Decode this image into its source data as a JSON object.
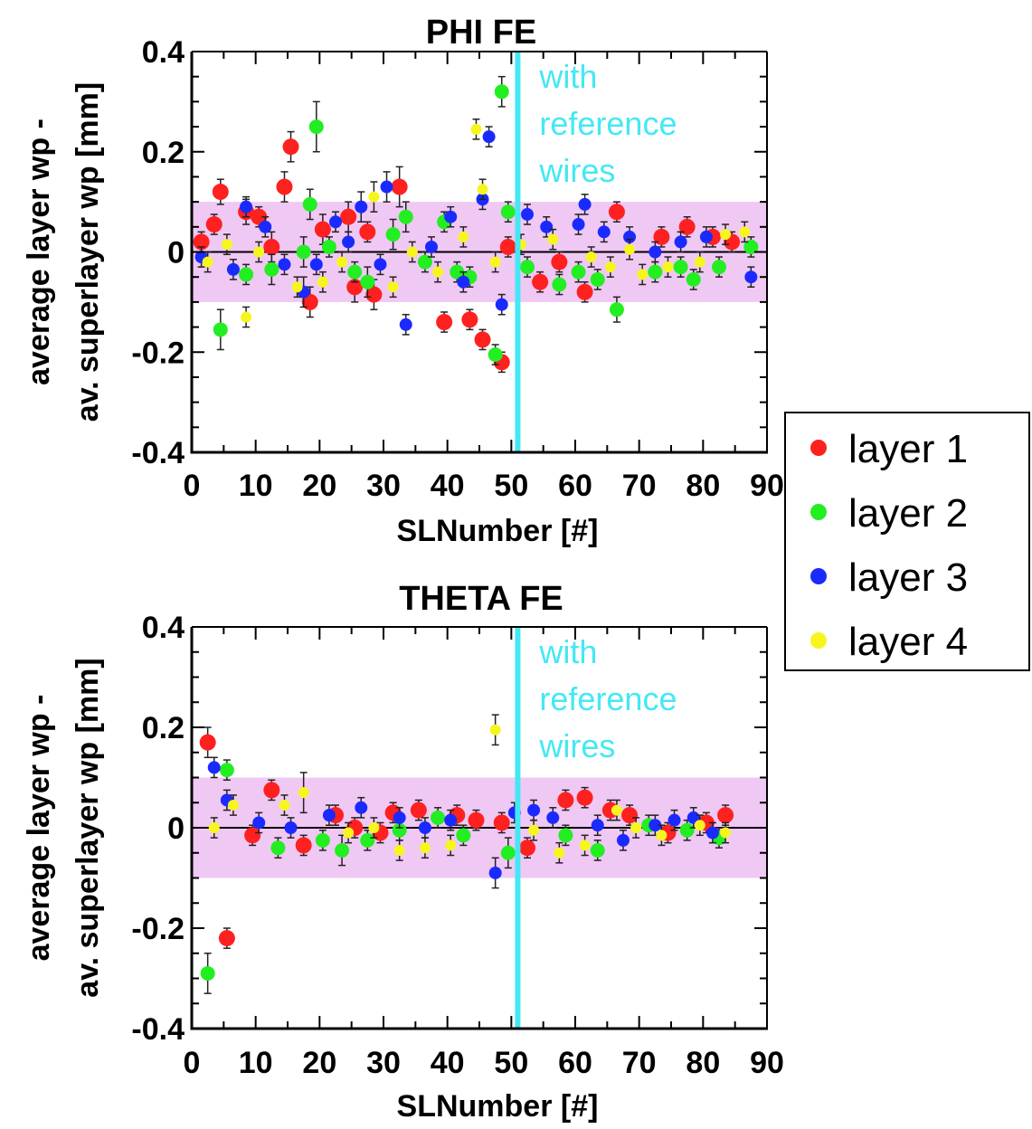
{
  "colors": {
    "band": "#f0c8f4",
    "reference_line": "#44e8f4",
    "axis": "#000000",
    "error_bar": "#222222"
  },
  "legend": {
    "placement": "right",
    "items": [
      {
        "label": "layer 1",
        "color": "#ff2020"
      },
      {
        "label": "layer 2",
        "color": "#22ee22"
      },
      {
        "label": "layer 3",
        "color": "#1a2aff"
      },
      {
        "label": "layer 4",
        "color": "#f6f61e"
      }
    ]
  },
  "chart_data": [
    {
      "type": "scatter",
      "title": "PHI FE",
      "xlabel": "SLNumber [#]",
      "ylabel_lines": [
        "average layer wp -",
        "av. superlayer wp [mm]"
      ],
      "xlim": [
        0,
        90
      ],
      "ylim": [
        -0.4,
        0.4
      ],
      "x_ticks": [
        "0",
        "10",
        "20",
        "30",
        "40",
        "50",
        "60",
        "70",
        "80",
        "90"
      ],
      "y_ticks": [
        "-0.4",
        "-0.2",
        "0",
        "0.2",
        "0.4"
      ],
      "tolerance_band": [
        -0.1,
        0.1
      ],
      "zero_line": 0,
      "reference_x": 51,
      "annotation_lines": [
        "with",
        "reference",
        "wires"
      ],
      "series": [
        {
          "name": "layer 1",
          "points": [
            [
              1.5,
              0.02,
              0.02
            ],
            [
              3.5,
              0.055,
              0.02
            ],
            [
              4.5,
              0.12,
              0.025
            ],
            [
              8.5,
              0.08,
              0.025
            ],
            [
              10.5,
              0.07,
              0.02
            ],
            [
              12.5,
              0.01,
              0.03
            ],
            [
              14.5,
              0.13,
              0.03
            ],
            [
              15.5,
              0.21,
              0.03
            ],
            [
              18.5,
              -0.1,
              0.03
            ],
            [
              20.5,
              0.045,
              0.03
            ],
            [
              24.5,
              0.07,
              0.03
            ],
            [
              25.5,
              -0.07,
              0.03
            ],
            [
              27.5,
              0.04,
              0.02
            ],
            [
              28.5,
              -0.085,
              0.03
            ],
            [
              32.5,
              0.13,
              0.04
            ],
            [
              39.5,
              -0.14,
              0.02
            ],
            [
              43.5,
              -0.135,
              0.02
            ],
            [
              45.5,
              -0.175,
              0.02
            ],
            [
              48.5,
              -0.22,
              0.02
            ],
            [
              49.5,
              0.01,
              0.02
            ],
            [
              54.5,
              -0.06,
              0.02
            ],
            [
              57.5,
              -0.02,
              0.02
            ],
            [
              61.5,
              -0.08,
              0.02
            ],
            [
              66.5,
              0.08,
              0.02
            ],
            [
              73.5,
              0.03,
              0.02
            ],
            [
              77.5,
              0.05,
              0.02
            ],
            [
              81.5,
              0.03,
              0.02
            ],
            [
              84.5,
              0.02,
              0.02
            ]
          ]
        },
        {
          "name": "layer 2",
          "points": [
            [
              4.5,
              -0.155,
              0.04
            ],
            [
              8.5,
              -0.045,
              0.02
            ],
            [
              12.5,
              -0.035,
              0.03
            ],
            [
              17.5,
              0.0,
              0.03
            ],
            [
              18.5,
              0.095,
              0.03
            ],
            [
              19.5,
              0.25,
              0.05
            ],
            [
              21.5,
              0.01,
              0.02
            ],
            [
              25.5,
              -0.04,
              0.02
            ],
            [
              27.5,
              -0.06,
              0.03
            ],
            [
              31.5,
              0.035,
              0.03
            ],
            [
              33.5,
              0.07,
              0.03
            ],
            [
              36.5,
              -0.02,
              0.02
            ],
            [
              39.5,
              0.06,
              0.02
            ],
            [
              41.5,
              -0.04,
              0.02
            ],
            [
              43.5,
              -0.05,
              0.02
            ],
            [
              47.5,
              -0.205,
              0.02
            ],
            [
              48.5,
              0.32,
              0.03
            ],
            [
              49.5,
              0.08,
              0.02
            ],
            [
              52.5,
              -0.03,
              0.02
            ],
            [
              57.5,
              -0.065,
              0.02
            ],
            [
              60.5,
              -0.04,
              0.02
            ],
            [
              63.5,
              -0.055,
              0.02
            ],
            [
              66.5,
              -0.115,
              0.025
            ],
            [
              72.5,
              -0.04,
              0.02
            ],
            [
              76.5,
              -0.03,
              0.02
            ],
            [
              78.5,
              -0.055,
              0.02
            ],
            [
              82.5,
              -0.03,
              0.02
            ],
            [
              87.5,
              0.01,
              0.02
            ]
          ]
        },
        {
          "name": "layer 3",
          "points": [
            [
              1.5,
              -0.01,
              0.02
            ],
            [
              6.5,
              -0.035,
              0.02
            ],
            [
              8.5,
              0.09,
              0.02
            ],
            [
              11.5,
              0.05,
              0.02
            ],
            [
              14.5,
              -0.025,
              0.02
            ],
            [
              17.5,
              -0.08,
              0.03
            ],
            [
              19.5,
              -0.025,
              0.02
            ],
            [
              22.5,
              0.06,
              0.02
            ],
            [
              24.5,
              0.02,
              0.02
            ],
            [
              26.5,
              0.09,
              0.03
            ],
            [
              29.5,
              -0.025,
              0.02
            ],
            [
              30.5,
              0.13,
              0.03
            ],
            [
              33.5,
              -0.145,
              0.02
            ],
            [
              37.5,
              0.01,
              0.02
            ],
            [
              40.5,
              0.07,
              0.02
            ],
            [
              42.5,
              -0.06,
              0.02
            ],
            [
              45.5,
              0.105,
              0.02
            ],
            [
              46.5,
              0.23,
              0.02
            ],
            [
              48.5,
              -0.105,
              0.02
            ],
            [
              52.5,
              0.075,
              0.02
            ],
            [
              55.5,
              0.05,
              0.02
            ],
            [
              60.5,
              0.055,
              0.02
            ],
            [
              61.5,
              0.095,
              0.02
            ],
            [
              64.5,
              0.04,
              0.02
            ],
            [
              68.5,
              0.03,
              0.02
            ],
            [
              72.5,
              0.0,
              0.02
            ],
            [
              76.5,
              0.02,
              0.02
            ],
            [
              80.5,
              0.03,
              0.02
            ],
            [
              87.5,
              -0.05,
              0.02
            ]
          ]
        },
        {
          "name": "layer 4",
          "points": [
            [
              2.5,
              -0.02,
              0.02
            ],
            [
              5.5,
              0.015,
              0.02
            ],
            [
              8.5,
              -0.13,
              0.02
            ],
            [
              10.5,
              0.0,
              0.02
            ],
            [
              16.5,
              -0.07,
              0.02
            ],
            [
              20.5,
              -0.06,
              0.02
            ],
            [
              23.5,
              -0.02,
              0.02
            ],
            [
              28.5,
              0.11,
              0.03
            ],
            [
              31.5,
              -0.07,
              0.02
            ],
            [
              34.5,
              0.0,
              0.02
            ],
            [
              38.5,
              -0.04,
              0.02
            ],
            [
              42.5,
              0.03,
              0.02
            ],
            [
              44.5,
              0.245,
              0.02
            ],
            [
              45.5,
              0.125,
              0.02
            ],
            [
              47.5,
              -0.02,
              0.02
            ],
            [
              51.5,
              0.015,
              0.02
            ],
            [
              56.5,
              0.025,
              0.02
            ],
            [
              62.5,
              -0.01,
              0.02
            ],
            [
              65.5,
              -0.03,
              0.02
            ],
            [
              68.5,
              0.005,
              0.02
            ],
            [
              70.5,
              -0.045,
              0.02
            ],
            [
              74.5,
              -0.03,
              0.02
            ],
            [
              79.5,
              -0.02,
              0.02
            ],
            [
              83.5,
              0.035,
              0.02
            ],
            [
              86.5,
              0.04,
              0.02
            ]
          ]
        }
      ]
    },
    {
      "type": "scatter",
      "title": "THETA FE",
      "xlabel": "SLNumber [#]",
      "ylabel_lines": [
        "average layer wp -",
        "av. superlayer wp [mm]"
      ],
      "xlim": [
        0,
        90
      ],
      "ylim": [
        -0.4,
        0.4
      ],
      "x_ticks": [
        "0",
        "10",
        "20",
        "30",
        "40",
        "50",
        "60",
        "70",
        "80",
        "90"
      ],
      "y_ticks": [
        "-0.4",
        "-0.2",
        "0",
        "0.2",
        "0.4"
      ],
      "tolerance_band": [
        -0.1,
        0.1
      ],
      "zero_line": 0,
      "reference_x": 51,
      "annotation_lines": [
        "with",
        "reference",
        "wires"
      ],
      "series": [
        {
          "name": "layer 1",
          "points": [
            [
              2.5,
              0.17,
              0.03
            ],
            [
              5.5,
              -0.22,
              0.02
            ],
            [
              9.5,
              -0.015,
              0.02
            ],
            [
              12.5,
              0.075,
              0.02
            ],
            [
              17.5,
              -0.035,
              0.02
            ],
            [
              22.5,
              0.025,
              0.02
            ],
            [
              25.5,
              0.0,
              0.02
            ],
            [
              29.5,
              -0.01,
              0.02
            ],
            [
              31.5,
              0.03,
              0.02
            ],
            [
              35.5,
              0.035,
              0.02
            ],
            [
              41.5,
              0.025,
              0.02
            ],
            [
              44.5,
              0.015,
              0.02
            ],
            [
              48.5,
              0.01,
              0.02
            ],
            [
              52.5,
              -0.04,
              0.02
            ],
            [
              58.5,
              0.055,
              0.02
            ],
            [
              61.5,
              0.06,
              0.02
            ],
            [
              65.5,
              0.035,
              0.02
            ],
            [
              68.5,
              0.025,
              0.02
            ],
            [
              74.5,
              -0.01,
              0.02
            ],
            [
              80.5,
              0.01,
              0.02
            ],
            [
              83.5,
              0.025,
              0.02
            ]
          ]
        },
        {
          "name": "layer 2",
          "points": [
            [
              2.5,
              -0.29,
              0.04
            ],
            [
              5.5,
              0.115,
              0.02
            ],
            [
              13.5,
              -0.04,
              0.02
            ],
            [
              20.5,
              -0.025,
              0.02
            ],
            [
              23.5,
              -0.045,
              0.03
            ],
            [
              27.5,
              -0.025,
              0.02
            ],
            [
              32.5,
              -0.005,
              0.02
            ],
            [
              38.5,
              0.02,
              0.02
            ],
            [
              42.5,
              -0.015,
              0.02
            ],
            [
              49.5,
              -0.05,
              0.03
            ],
            [
              58.5,
              -0.015,
              0.02
            ],
            [
              63.5,
              -0.045,
              0.02
            ],
            [
              71.5,
              0.005,
              0.02
            ],
            [
              77.5,
              -0.005,
              0.02
            ],
            [
              82.5,
              -0.02,
              0.02
            ]
          ]
        },
        {
          "name": "layer 3",
          "points": [
            [
              3.5,
              0.12,
              0.02
            ],
            [
              5.5,
              0.055,
              0.02
            ],
            [
              10.5,
              0.01,
              0.02
            ],
            [
              15.5,
              0.0,
              0.02
            ],
            [
              21.5,
              0.025,
              0.02
            ],
            [
              26.5,
              0.04,
              0.02
            ],
            [
              32.5,
              0.02,
              0.02
            ],
            [
              36.5,
              0.0,
              0.02
            ],
            [
              40.5,
              0.015,
              0.02
            ],
            [
              47.5,
              -0.09,
              0.03
            ],
            [
              50.5,
              0.03,
              0.02
            ],
            [
              53.5,
              0.035,
              0.02
            ],
            [
              56.5,
              0.02,
              0.02
            ],
            [
              63.5,
              0.005,
              0.02
            ],
            [
              67.5,
              -0.025,
              0.02
            ],
            [
              72.5,
              0.005,
              0.02
            ],
            [
              75.5,
              0.015,
              0.02
            ],
            [
              78.5,
              0.02,
              0.02
            ],
            [
              81.5,
              -0.01,
              0.02
            ]
          ]
        },
        {
          "name": "layer 4",
          "points": [
            [
              3.5,
              0.0,
              0.02
            ],
            [
              6.5,
              0.045,
              0.02
            ],
            [
              14.5,
              0.045,
              0.02
            ],
            [
              17.5,
              0.07,
              0.04
            ],
            [
              24.5,
              -0.01,
              0.02
            ],
            [
              28.5,
              0.0,
              0.02
            ],
            [
              32.5,
              -0.045,
              0.02
            ],
            [
              36.5,
              -0.04,
              0.02
            ],
            [
              40.5,
              -0.035,
              0.02
            ],
            [
              47.5,
              0.195,
              0.03
            ],
            [
              53.5,
              -0.005,
              0.02
            ],
            [
              57.5,
              -0.05,
              0.02
            ],
            [
              61.5,
              -0.035,
              0.02
            ],
            [
              66.5,
              0.035,
              0.02
            ],
            [
              69.5,
              0.0,
              0.02
            ],
            [
              73.5,
              -0.015,
              0.02
            ],
            [
              79.5,
              0.005,
              0.02
            ],
            [
              83.5,
              -0.01,
              0.02
            ]
          ]
        }
      ]
    }
  ]
}
